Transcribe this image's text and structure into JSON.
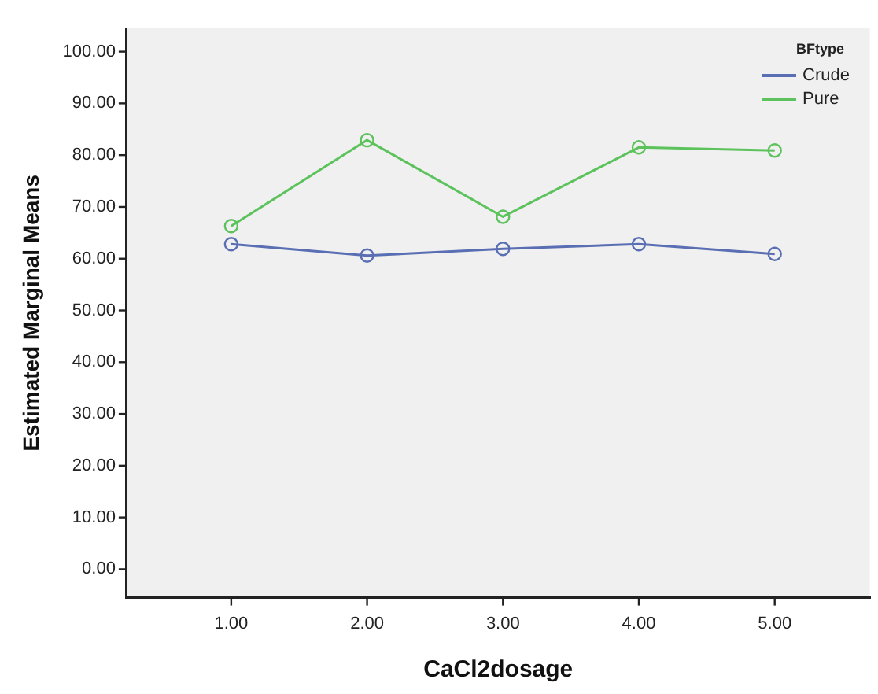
{
  "chart_data": {
    "type": "line",
    "xlabel": "CaCl2dosage",
    "ylabel": "Estimated Marginal Means",
    "legend_title": "BFtype",
    "x": [
      1,
      2,
      3,
      4,
      5
    ],
    "series": [
      {
        "name": "Crude",
        "color": "#5a6fb3",
        "values": [
          62.8,
          60.6,
          61.9,
          62.8,
          60.9
        ]
      },
      {
        "name": "Pure",
        "color": "#5cc25c",
        "values": [
          66.3,
          82.9,
          68.1,
          81.5,
          80.9
        ]
      }
    ],
    "xlim": [
      0.23,
      5.7
    ],
    "xticks": [
      {
        "value": 1,
        "label": "1.00"
      },
      {
        "value": 2,
        "label": "2.00"
      },
      {
        "value": 3,
        "label": "3.00"
      },
      {
        "value": 4,
        "label": "4.00"
      },
      {
        "value": 5,
        "label": "5.00"
      }
    ],
    "ylim": [
      -5.5,
      104.5
    ],
    "yticks": [
      {
        "value": 0,
        "label": "0.00"
      },
      {
        "value": 10,
        "label": "10.00"
      },
      {
        "value": 20,
        "label": "20.00"
      },
      {
        "value": 30,
        "label": "30.00"
      },
      {
        "value": 40,
        "label": "40.00"
      },
      {
        "value": 50,
        "label": "50.00"
      },
      {
        "value": 60,
        "label": "60.00"
      },
      {
        "value": 70,
        "label": "70.00"
      },
      {
        "value": 80,
        "label": "80.00"
      },
      {
        "value": 90,
        "label": "90.00"
      },
      {
        "value": 100,
        "label": "100.00"
      }
    ],
    "grid": false,
    "legend": "top right",
    "marker": "circle",
    "line_style": "solid"
  }
}
